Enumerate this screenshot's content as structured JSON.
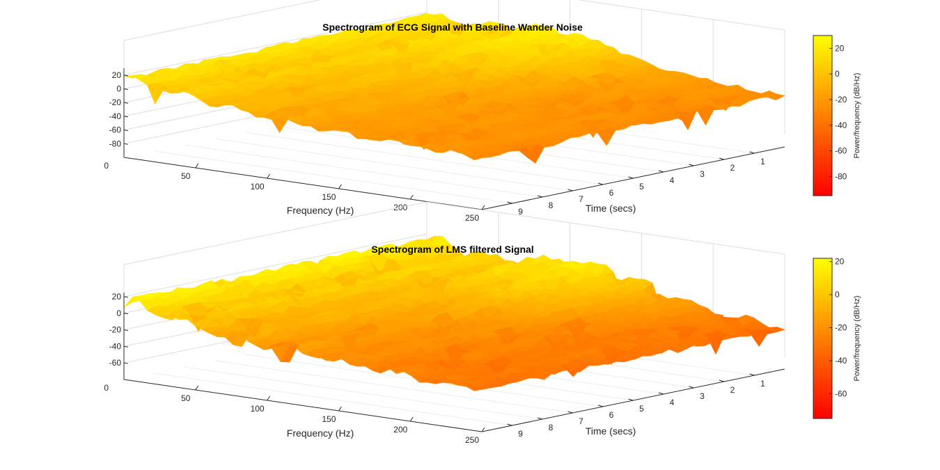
{
  "chart_data": [
    {
      "type": "surface",
      "title": "Spectrogram of ECG Signal with Baseline Wander Noise",
      "xlabel": "Frequency (Hz)",
      "ylabel": "Time (secs)",
      "x_ticks": [
        50,
        100,
        150,
        200,
        250
      ],
      "y_ticks": [
        1,
        2,
        3,
        4,
        5,
        6,
        7,
        8,
        9
      ],
      "z_ticks": [
        20,
        0,
        -20,
        -40,
        -60,
        -80
      ],
      "z_zero_label": "0",
      "xlim": [
        0,
        250
      ],
      "ylim": [
        0,
        10
      ],
      "zlim": [
        -100,
        30
      ],
      "surface_profile": {
        "description": "power vs frequency, averaged along time",
        "frequency": [
          0,
          25,
          50,
          100,
          150,
          200,
          250
        ],
        "power_db": [
          15,
          8,
          2,
          -10,
          -18,
          -22,
          -25
        ],
        "peak_ridge_frequency_hz": 100,
        "peak_ridge_power_db": 28
      },
      "colorbar": {
        "label": "Power/frequency (dB/Hz)",
        "ticks": [
          20,
          0,
          -20,
          -40,
          -60,
          -80
        ],
        "range": [
          -95,
          30
        ],
        "colormap": "autumn",
        "color_low": "#ff0000",
        "color_high": "#ffff00"
      }
    },
    {
      "type": "surface",
      "title": "Spectrogram of LMS filtered Signal",
      "xlabel": "Frequency (Hz)",
      "ylabel": "Time (secs)",
      "x_ticks": [
        50,
        100,
        150,
        200,
        250
      ],
      "y_ticks": [
        1,
        2,
        3,
        4,
        5,
        6,
        7,
        8,
        9
      ],
      "z_ticks": [
        20,
        0,
        -20,
        -40,
        -60
      ],
      "z_zero_label": "0",
      "xlim": [
        0,
        250
      ],
      "ylim": [
        0,
        10
      ],
      "zlim": [
        -80,
        25
      ],
      "surface_profile": {
        "description": "power vs frequency, averaged along time",
        "frequency": [
          0,
          25,
          50,
          100,
          150,
          200,
          250
        ],
        "power_db": [
          14,
          6,
          -2,
          -14,
          -22,
          -26,
          -30
        ],
        "peak_ridge_frequency_hz": 120,
        "peak_ridge_power_db": 20
      },
      "colorbar": {
        "label": "Power/frequency (dB/Hz)",
        "ticks": [
          20,
          0,
          -20,
          -40,
          -60
        ],
        "range": [
          -75,
          22
        ],
        "colormap": "autumn",
        "color_low": "#ff0000",
        "color_high": "#ffff00"
      }
    }
  ]
}
